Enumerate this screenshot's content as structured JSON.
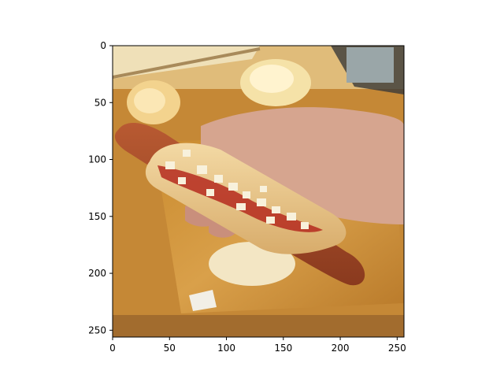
{
  "chart_data": {
    "type": "image",
    "title": "",
    "xlabel": "",
    "ylabel": "",
    "xlim": [
      0,
      256
    ],
    "ylim": [
      256,
      0
    ],
    "x_ticks": [
      0,
      50,
      100,
      150,
      200,
      250
    ],
    "y_ticks": [
      0,
      50,
      100,
      150,
      200,
      250
    ],
    "grid": false,
    "image_content": "photo-of-hot-dog-with-ketchup-and-chopped-onions-held-in-hand-over-cutting-board"
  }
}
